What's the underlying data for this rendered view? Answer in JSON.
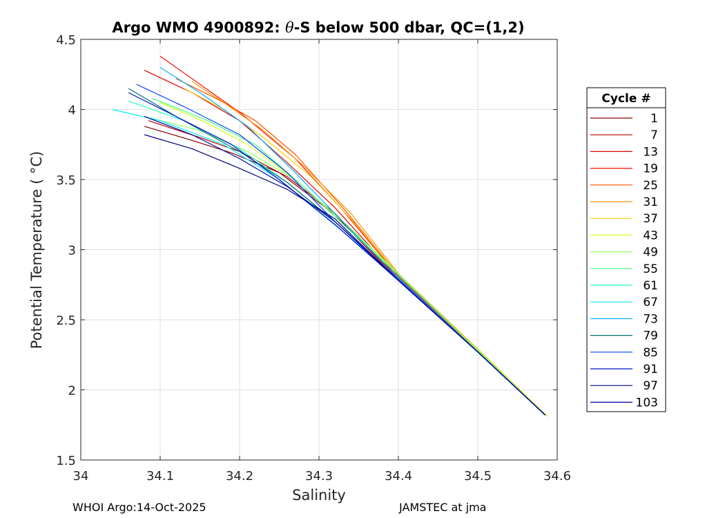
{
  "chart_data": {
    "type": "line",
    "title_prefix": "Argo WMO 4900892: ",
    "title_theta": "θ",
    "title_suffix": "-S below 500 dbar,  QC=(1,2)",
    "xlabel": "Salinity",
    "ylabel": "Potential Temperature ( °C)",
    "xlim": [
      34.0,
      34.6
    ],
    "ylim": [
      1.5,
      4.5
    ],
    "xticks": [
      34.0,
      34.1,
      34.2,
      34.3,
      34.4,
      34.5,
      34.6
    ],
    "xtick_labels": [
      "34",
      "34.1",
      "34.2",
      "34.3",
      "34.4",
      "34.5",
      "34.6"
    ],
    "yticks": [
      1.5,
      2.0,
      2.5,
      3.0,
      3.5,
      4.0,
      4.5
    ],
    "ytick_labels": [
      "1.5",
      "2",
      "2.5",
      "3",
      "3.5",
      "4",
      "4.5"
    ],
    "grid": true,
    "colormap": "jet",
    "legend_title": "Cycle #",
    "legend_placement": "right",
    "legend": [
      {
        "label": "1",
        "color": "#800000"
      },
      {
        "label": "7",
        "color": "#b00000"
      },
      {
        "label": "13",
        "color": "#e00000"
      },
      {
        "label": "19",
        "color": "#f01000"
      },
      {
        "label": "25",
        "color": "#ff5000"
      },
      {
        "label": "31",
        "color": "#ff9000"
      },
      {
        "label": "37",
        "color": "#ffd000"
      },
      {
        "label": "43",
        "color": "#d8ff20"
      },
      {
        "label": "49",
        "color": "#90ff60"
      },
      {
        "label": "55",
        "color": "#40ff80"
      },
      {
        "label": "61",
        "color": "#20ffc0"
      },
      {
        "label": "67",
        "color": "#00e8ff"
      },
      {
        "label": "73",
        "color": "#00b0ff"
      },
      {
        "label": "79",
        "color": "#007070"
      },
      {
        "label": "85",
        "color": "#0040ff"
      },
      {
        "label": "91",
        "color": "#0010d0"
      },
      {
        "label": "97",
        "color": "#000080"
      },
      {
        "label": "103",
        "color": "#0000a0"
      }
    ],
    "series": [
      {
        "name": "1",
        "color": "#800000",
        "x": [
          34.08,
          34.14,
          34.19,
          34.25,
          34.32,
          34.4,
          34.5,
          34.585
        ],
        "y": [
          3.88,
          3.78,
          3.69,
          3.55,
          3.25,
          2.78,
          2.27,
          1.82
        ]
      },
      {
        "name": "7",
        "color": "#b00000",
        "x": [
          34.085,
          34.15,
          34.2,
          34.26,
          34.32,
          34.4,
          34.5,
          34.585
        ],
        "y": [
          3.92,
          3.8,
          3.7,
          3.52,
          3.26,
          2.79,
          2.27,
          1.82
        ]
      },
      {
        "name": "13",
        "color": "#e00000",
        "x": [
          34.08,
          34.14,
          34.2,
          34.26,
          34.32,
          34.4,
          34.5,
          34.585
        ],
        "y": [
          4.28,
          4.12,
          3.92,
          3.62,
          3.3,
          2.8,
          2.28,
          1.82
        ]
      },
      {
        "name": "19",
        "color": "#f01000",
        "x": [
          34.1,
          34.15,
          34.2,
          34.27,
          34.33,
          34.4,
          34.5,
          34.585
        ],
        "y": [
          4.38,
          4.18,
          3.98,
          3.65,
          3.28,
          2.81,
          2.28,
          1.82
        ]
      },
      {
        "name": "25",
        "color": "#ff5000",
        "x": [
          34.12,
          34.17,
          34.22,
          34.27,
          34.33,
          34.4,
          34.5,
          34.585
        ],
        "y": [
          4.22,
          4.08,
          3.92,
          3.68,
          3.3,
          2.82,
          2.28,
          1.82
        ]
      },
      {
        "name": "31",
        "color": "#ff9000",
        "x": [
          34.14,
          34.18,
          34.23,
          34.28,
          34.34,
          34.4,
          34.5,
          34.585
        ],
        "y": [
          4.2,
          4.05,
          3.85,
          3.6,
          3.26,
          2.83,
          2.29,
          1.82
        ]
      },
      {
        "name": "37",
        "color": "#ffd000",
        "x": [
          34.13,
          34.18,
          34.23,
          34.29,
          34.34,
          34.4,
          34.5,
          34.588
        ],
        "y": [
          4.15,
          4.0,
          3.8,
          3.52,
          3.22,
          2.82,
          2.29,
          1.81
        ]
      },
      {
        "name": "43",
        "color": "#d8ff20",
        "x": [
          34.1,
          34.16,
          34.21,
          34.27,
          34.34,
          34.4,
          34.5,
          34.586
        ],
        "y": [
          4.05,
          3.9,
          3.75,
          3.5,
          3.15,
          2.82,
          2.28,
          1.82
        ]
      },
      {
        "name": "49",
        "color": "#90ff60",
        "x": [
          34.08,
          34.15,
          34.21,
          34.27,
          34.34,
          34.4,
          34.5,
          34.585
        ],
        "y": [
          3.95,
          3.85,
          3.7,
          3.5,
          3.15,
          2.83,
          2.28,
          1.82
        ]
      },
      {
        "name": "55",
        "color": "#40ff80",
        "x": [
          34.09,
          34.16,
          34.22,
          34.28,
          34.34,
          34.4,
          34.5,
          34.585
        ],
        "y": [
          4.08,
          3.92,
          3.75,
          3.45,
          3.13,
          2.82,
          2.28,
          1.82
        ]
      },
      {
        "name": "61",
        "color": "#20ffc0",
        "x": [
          34.06,
          34.13,
          34.2,
          34.26,
          34.33,
          34.4,
          34.5,
          34.585
        ],
        "y": [
          4.06,
          3.92,
          3.72,
          3.48,
          3.15,
          2.79,
          2.27,
          1.82
        ]
      },
      {
        "name": "67",
        "color": "#00e8ff",
        "x": [
          34.04,
          34.1,
          34.18,
          34.25,
          34.33,
          34.4,
          34.5,
          34.585
        ],
        "y": [
          4.0,
          3.92,
          3.75,
          3.5,
          3.13,
          2.79,
          2.27,
          1.82
        ]
      },
      {
        "name": "73",
        "color": "#00b0ff",
        "x": [
          34.1,
          34.15,
          34.21,
          34.27,
          34.33,
          34.4,
          34.5,
          34.585
        ],
        "y": [
          4.3,
          4.12,
          3.88,
          3.55,
          3.2,
          2.8,
          2.27,
          1.82
        ]
      },
      {
        "name": "79",
        "color": "#007070",
        "x": [
          34.06,
          34.12,
          34.2,
          34.26,
          34.32,
          34.4,
          34.5,
          34.585
        ],
        "y": [
          4.15,
          3.95,
          3.7,
          3.48,
          3.2,
          2.79,
          2.27,
          1.82
        ]
      },
      {
        "name": "85",
        "color": "#0040ff",
        "x": [
          34.07,
          34.13,
          34.2,
          34.26,
          34.32,
          34.4,
          34.5,
          34.585
        ],
        "y": [
          4.18,
          4.02,
          3.82,
          3.55,
          3.2,
          2.79,
          2.27,
          1.82
        ]
      },
      {
        "name": "91",
        "color": "#0010d0",
        "x": [
          34.06,
          34.12,
          34.19,
          34.25,
          34.32,
          34.4,
          34.5,
          34.585
        ],
        "y": [
          4.12,
          3.95,
          3.75,
          3.5,
          3.18,
          2.78,
          2.27,
          1.82
        ]
      },
      {
        "name": "97",
        "color": "#000080",
        "x": [
          34.08,
          34.14,
          34.2,
          34.26,
          34.32,
          34.4,
          34.5,
          34.585
        ],
        "y": [
          3.82,
          3.72,
          3.58,
          3.43,
          3.22,
          2.78,
          2.27,
          1.82
        ]
      },
      {
        "name": "103",
        "color": "#0000a0",
        "x": [
          34.08,
          34.14,
          34.2,
          34.26,
          34.32,
          34.4,
          34.5,
          34.585
        ],
        "y": [
          3.95,
          3.82,
          3.65,
          3.45,
          3.2,
          2.78,
          2.27,
          1.82
        ]
      }
    ]
  },
  "footer": {
    "left": "WHOI Argo:14-Oct-2025",
    "right": "JAMSTEC at jma"
  }
}
